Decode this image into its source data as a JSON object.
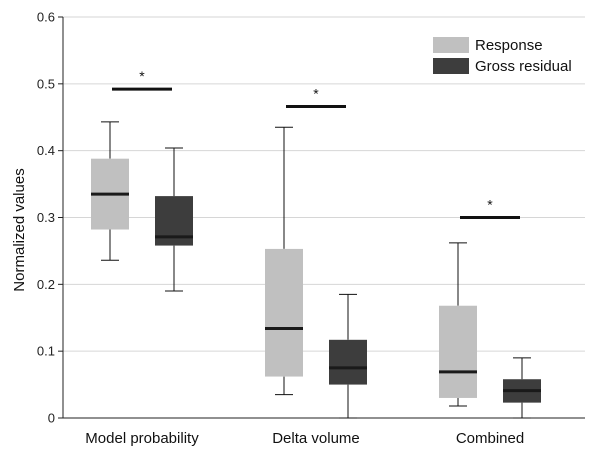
{
  "chart_data": {
    "type": "box",
    "title": "",
    "xlabel": "",
    "ylabel": "Normalized values",
    "ylim": [
      0,
      0.6
    ],
    "yticks": [
      0,
      0.1,
      0.2,
      0.3,
      0.4,
      0.5,
      0.6
    ],
    "ytick_labels": [
      "0",
      "0.1",
      "0.2",
      "0.3",
      "0.4",
      "0.5",
      "0.6"
    ],
    "grid": true,
    "legend_position": "top-right",
    "categories": [
      "Model probability",
      "Delta volume",
      "Combined"
    ],
    "series": [
      {
        "name": "Response",
        "color": "#c0c0c0",
        "boxes": [
          {
            "whisker_low": 0.236,
            "q1": 0.282,
            "median": 0.335,
            "q3": 0.388,
            "whisker_high": 0.443
          },
          {
            "whisker_low": 0.035,
            "q1": 0.062,
            "median": 0.134,
            "q3": 0.253,
            "whisker_high": 0.435
          },
          {
            "whisker_low": 0.018,
            "q1": 0.03,
            "median": 0.069,
            "q3": 0.168,
            "whisker_high": 0.262
          }
        ]
      },
      {
        "name": "Gross residual",
        "color": "#3d3d3d",
        "boxes": [
          {
            "whisker_low": 0.19,
            "q1": 0.258,
            "median": 0.271,
            "q3": 0.332,
            "whisker_high": 0.404
          },
          {
            "whisker_low": 0.0,
            "q1": 0.05,
            "median": 0.075,
            "q3": 0.117,
            "whisker_high": 0.185
          },
          {
            "whisker_low": 0.0,
            "q1": 0.023,
            "median": 0.041,
            "q3": 0.058,
            "whisker_high": 0.09
          }
        ]
      }
    ],
    "significance": [
      {
        "category_index": 0,
        "y": 0.492,
        "label": "*"
      },
      {
        "category_index": 1,
        "y": 0.466,
        "label": "*"
      },
      {
        "category_index": 2,
        "y": 0.3,
        "label": "*"
      }
    ]
  }
}
